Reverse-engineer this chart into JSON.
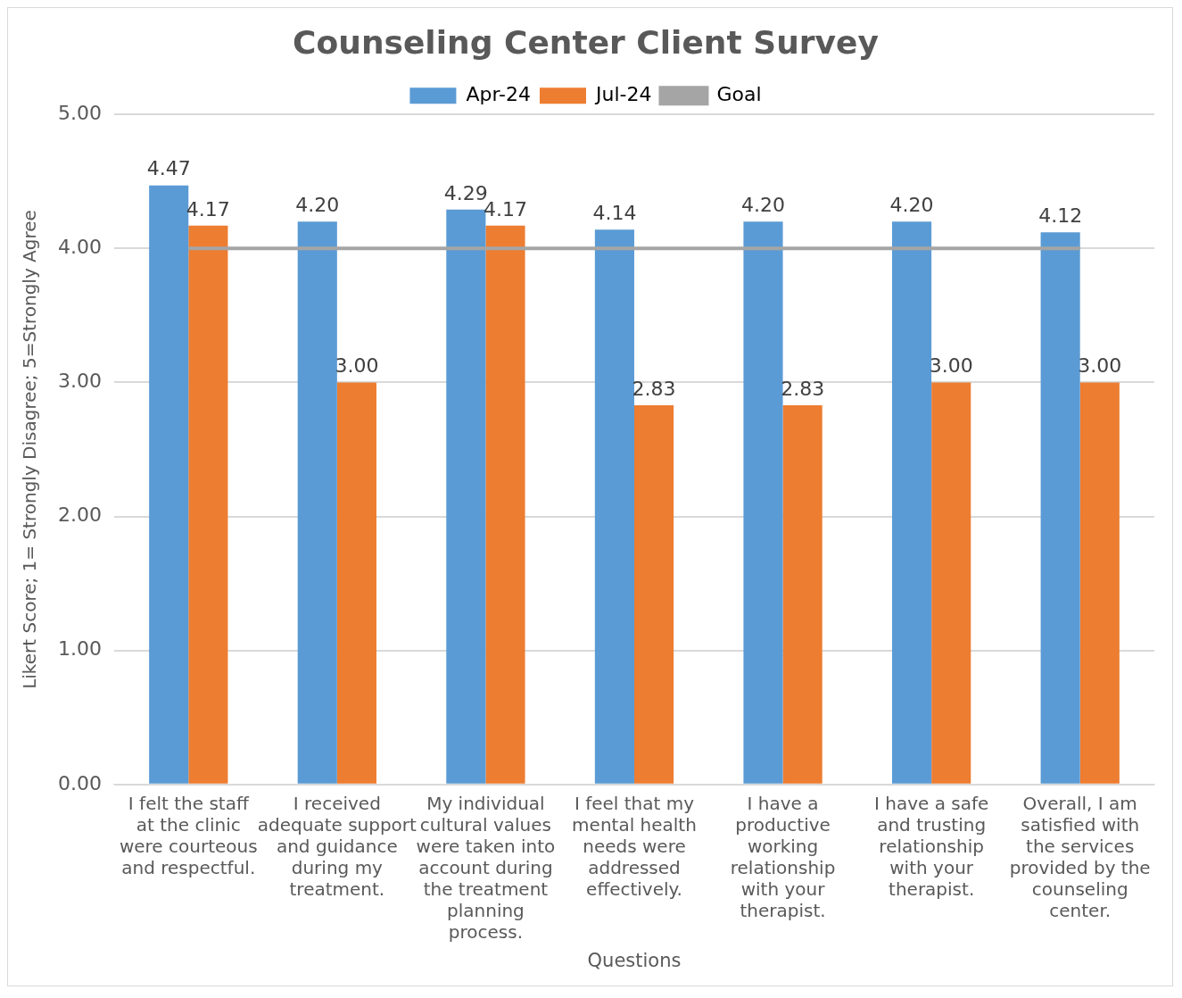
{
  "chart_data": {
    "type": "bar",
    "title": "Counseling Center Client Survey",
    "xlabel": "Questions",
    "ylabel": "Likert Score; 1= Strongly Disagree; 5=Strongly Agree",
    "categories": [
      "I felt the staff at the clinic were courteous and respectful.",
      "I received adequate support and guidance during my treatment.",
      "My individual cultural values were taken into account during the treatment planning process.",
      "I feel that my mental health needs were addressed effectively.",
      "I have a productive working relationship with your therapist.",
      "I have a safe and trusting relationship with your therapist.",
      "Overall, I am satisfied with the services provided by the counseling center."
    ],
    "series": [
      {
        "name": "Apr-24",
        "color": "#5b9bd5",
        "values": [
          4.47,
          4.2,
          4.29,
          4.14,
          4.2,
          4.2,
          4.12
        ],
        "value_labels": [
          "4.47",
          "4.20",
          "4.29",
          "4.14",
          "4.20",
          "4.20",
          "4.12"
        ]
      },
      {
        "name": "Jul-24",
        "color": "#ed7d31",
        "values": [
          4.17,
          3,
          4.17,
          2.83,
          2.83,
          3,
          3
        ],
        "value_labels": [
          "4.17",
          "3.00",
          "4.17",
          "2.83",
          "2.83",
          "3.00",
          "3.00"
        ]
      },
      {
        "name": "Goal",
        "type": "line",
        "color": "#a5a5a5",
        "values": [
          4,
          4,
          4,
          4,
          4,
          4,
          4
        ]
      }
    ],
    "ylim": [
      0,
      5
    ],
    "yticks": [
      {
        "value": 0,
        "label": "0.00"
      },
      {
        "value": 1,
        "label": "1.00"
      },
      {
        "value": 2,
        "label": "2.00"
      },
      {
        "value": 3,
        "label": "3.00"
      },
      {
        "value": 4,
        "label": "4.00"
      },
      {
        "value": 5,
        "label": "5.00"
      }
    ],
    "grid": "y",
    "legend": "top",
    "marker": "none"
  }
}
